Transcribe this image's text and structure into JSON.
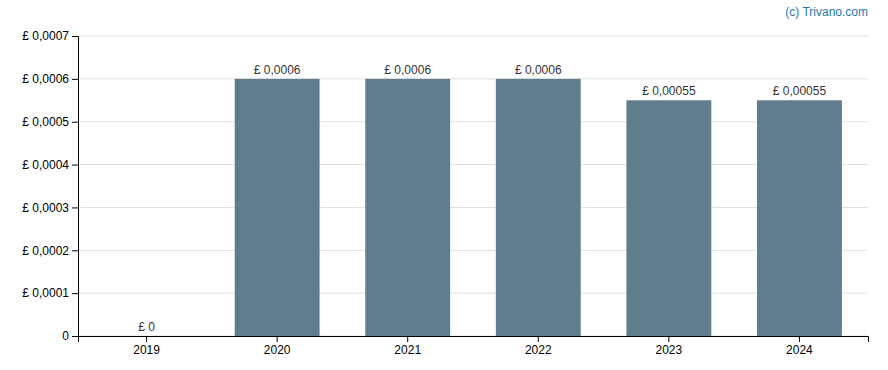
{
  "chart_data": {
    "type": "bar",
    "categories": [
      "2019",
      "2020",
      "2021",
      "2022",
      "2023",
      "2024"
    ],
    "values": [
      0,
      0.0006,
      0.0006,
      0.0006,
      0.00055,
      0.00055
    ],
    "value_labels": [
      "£ 0",
      "£ 0,0006",
      "£ 0,0006",
      "£ 0,0006",
      "£ 0,00055",
      "£ 0,00055"
    ],
    "data_labels": true,
    "color": "#5f7d8c",
    "ylim": [
      0,
      0.0007
    ],
    "yticks": [
      0,
      {
        "value": 0.0001,
        "label": "£ 0,0001"
      },
      {
        "value": 0.0002,
        "label": "£ 0,0002"
      },
      {
        "value": 0.0003,
        "label": "£ 0,0003"
      },
      {
        "value": 0.0004,
        "label": "£ 0,0004"
      },
      {
        "value": 0.0005,
        "label": "£ 0,0005"
      },
      {
        "value": 0.0006,
        "label": "£ 0,0006"
      },
      {
        "value": 0.0007,
        "label": "£ 0,0007"
      }
    ],
    "grid": true,
    "annotations": [
      "(c) Trivano.com"
    ]
  }
}
